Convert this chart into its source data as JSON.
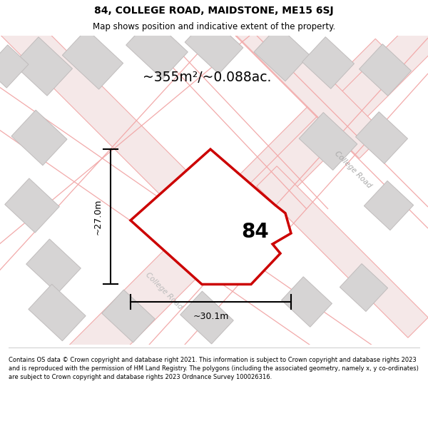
{
  "title": "84, COLLEGE ROAD, MAIDSTONE, ME15 6SJ",
  "subtitle": "Map shows position and indicative extent of the property.",
  "area_label": "~355m²/~0.088ac.",
  "number_label": "84",
  "width_label": "~30.1m",
  "height_label": "~27.0m",
  "footer": "Contains OS data © Crown copyright and database right 2021. This information is subject to Crown copyright and database rights 2023 and is reproduced with the permission of HM Land Registry. The polygons (including the associated geometry, namely x, y co-ordinates) are subject to Crown copyright and database rights 2023 Ordnance Survey 100026316.",
  "bg_color": "#f2f0f0",
  "plot_color": "#cc0000",
  "road_color": "#f2aaaa",
  "building_color": "#d6d4d4",
  "building_edge": "#c0bcbc",
  "road_fill": "#f5e8e8"
}
